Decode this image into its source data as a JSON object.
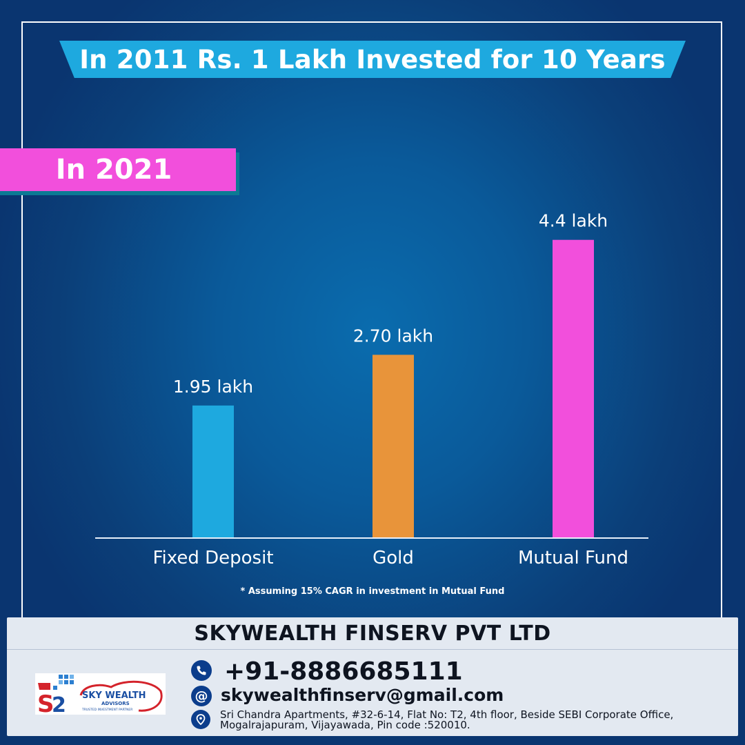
{
  "title": "In 2011 Rs. 1 Lakh Invested for 10 Years",
  "year_tag": "In 2021",
  "note": "* Assuming 15% CAGR in investment in Mutual Fund",
  "colors": {
    "title_banner": "#1ea9df",
    "year_tag": "#f24fdc",
    "background": "#0a5a9a",
    "footer": "#e3e9f1",
    "icon_circle": "#0b3d8c"
  },
  "chart_data": {
    "type": "bar",
    "categories": [
      "Fixed Deposit",
      "Gold",
      "Mutual Fund"
    ],
    "values": [
      1.95,
      2.7,
      4.4
    ],
    "value_labels": [
      "1.95 lakh",
      "2.70 lakh",
      "4.4 lakh"
    ],
    "colors": [
      "#1ea9df",
      "#e8943a",
      "#f24fdc"
    ],
    "ylim": [
      0,
      5.05
    ],
    "grid": false,
    "title": "",
    "xlabel": "",
    "ylabel": ""
  },
  "footer": {
    "company": "SKYWEALTH FINSERV PVT LTD",
    "phone": "+91-8886685111",
    "email": "skywealthfinserv@gmail.com",
    "address_line1": "Sri Chandra Apartments, #32-6-14, Flat No: T2, 4th floor, Beside SEBI Corporate Office,",
    "address_line2": "Mogalrajapuram, Vijayawada, Pin code :520010.",
    "phone_icon": "phone-icon",
    "email_icon": "at-icon",
    "address_icon": "location-pin-icon",
    "logo": {
      "name": "SKY WEALTH",
      "sub": "ADVISORS",
      "tagline": "TRUSTED INVESTMENT PARTNER"
    }
  }
}
